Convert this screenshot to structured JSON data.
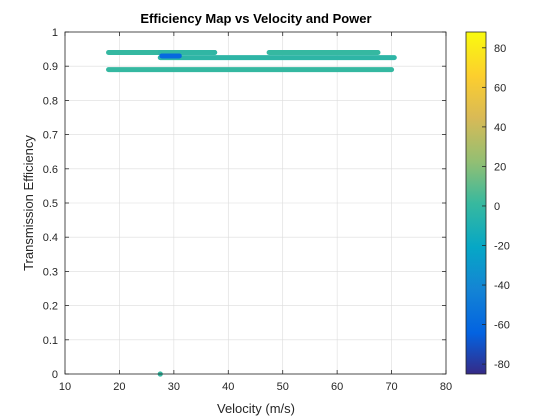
{
  "chart_data": {
    "type": "scatter",
    "title": "Efficiency Map vs Velocity and Power",
    "xlabel": "Velocity (m/s)",
    "ylabel": "Transmission Efficiency",
    "xlim": [
      10,
      80
    ],
    "ylim": [
      0,
      1
    ],
    "x_ticks": [
      "10",
      "20",
      "30",
      "40",
      "50",
      "60",
      "70",
      "80"
    ],
    "y_ticks": [
      "0",
      "0.1",
      "0.2",
      "0.3",
      "0.4",
      "0.5",
      "0.6",
      "0.7",
      "0.8",
      "0.9",
      "1"
    ],
    "grid": true,
    "colormap": "parula",
    "colorbar": {
      "range": [
        -85,
        88
      ],
      "ticks": [
        "-80",
        "-60",
        "-40",
        "-20",
        "0",
        "20",
        "40",
        "60",
        "80"
      ]
    },
    "bands": [
      {
        "x_start": 18,
        "x_end": 70,
        "efficiency": 0.89,
        "power": 0
      },
      {
        "x_start": 18,
        "x_end": 37.5,
        "efficiency": 0.94,
        "power": 0
      },
      {
        "x_start": 27.5,
        "x_end": 70.5,
        "efficiency": 0.925,
        "power": -3
      },
      {
        "x_start": 27.5,
        "x_end": 37.5,
        "efficiency": 0.94,
        "power": -2
      },
      {
        "x_start": 47.5,
        "x_end": 67.5,
        "efficiency": 0.94,
        "power": 0
      },
      {
        "x_start": 27.8,
        "x_end": 31,
        "efficiency": 0.93,
        "power": -60
      }
    ],
    "points": [
      {
        "x": 27.5,
        "y": 0,
        "power": 0
      }
    ]
  }
}
